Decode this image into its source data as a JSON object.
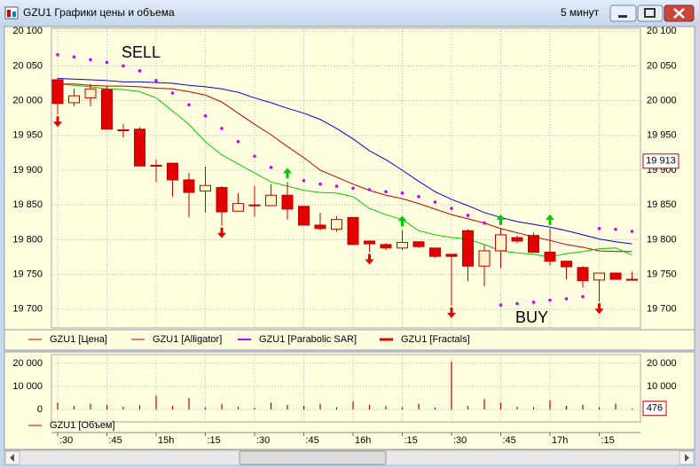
{
  "window": {
    "title": "GZU1 Графики цены и объема",
    "timeframe": "5 минут"
  },
  "chart_data": [
    {
      "type": "candlestick",
      "annotations": [
        {
          "text": "SELL",
          "color": "#e00000"
        },
        {
          "text": "BUY",
          "color": "#3fcc1f"
        }
      ],
      "price": {
        "name": "GZU1 [Цена]",
        "color": "#c00000",
        "up_fill": "#fff3c8",
        "down_fill": "#e00000",
        "open": [
          20030,
          19997,
          20004,
          20016,
          19958,
          19959,
          19907,
          19910,
          19886,
          19870,
          19875,
          19841,
          19849,
          19849,
          19864,
          19848,
          19821,
          19815,
          19832,
          19798,
          19793,
          19788,
          19797,
          19788,
          19779,
          19813,
          19762,
          19784,
          19803,
          19806,
          19782,
          19769,
          19760,
          19742,
          19752,
          19743
        ],
        "high": [
          20033,
          20017,
          20024,
          20021,
          19966,
          19962,
          19915,
          19910,
          19896,
          19905,
          19877,
          19867,
          19877,
          19880,
          19883,
          19848,
          19839,
          19834,
          19832,
          19798,
          19795,
          19814,
          19797,
          19788,
          19779,
          19815,
          19792,
          19816,
          19806,
          19810,
          19816,
          19769,
          19762,
          19752,
          19752,
          19754
        ],
        "low": [
          19980,
          19992,
          19992,
          19959,
          19947,
          19906,
          19883,
          19862,
          19832,
          19839,
          19820,
          19841,
          19833,
          19849,
          19829,
          19821,
          19813,
          19811,
          19793,
          19782,
          19785,
          19785,
          19788,
          19774,
          19705,
          19740,
          19733,
          19759,
          19795,
          19782,
          19763,
          19743,
          19731,
          19711,
          19743,
          19743
        ],
        "close": [
          19996,
          20007,
          20017,
          19959,
          19957,
          19906,
          19906,
          19886,
          19868,
          19878,
          19840,
          19852,
          19850,
          19864,
          19844,
          19821,
          19816,
          19829,
          19793,
          19794,
          19788,
          19796,
          19790,
          19776,
          19776,
          19762,
          19784,
          19807,
          19798,
          19782,
          19769,
          19761,
          19741,
          19752,
          19743,
          19743
        ]
      },
      "alligator": {
        "name": "GZU1 [Alligator]",
        "color": "#b00000",
        "lines": [
          {
            "color": "#0000dd",
            "values": [
              20032,
              20031,
              20030,
              20029,
              20027,
              20027,
              20026,
              20025,
              20022,
              20020,
              20017,
              20012,
              20004,
              19997,
              19989,
              19982,
              19973,
              19960,
              19945,
              19928,
              19915,
              19900,
              19884,
              19869,
              19858,
              19849,
              19839,
              19832,
              19826,
              19822,
              19818,
              19813,
              19807,
              19801,
              19797,
              19794
            ]
          },
          {
            "color": "#c00000",
            "values": [
              20024,
              20024,
              20022,
              20021,
              20021,
              20020,
              20018,
              20017,
              20013,
              20008,
              19998,
              19982,
              19966,
              19951,
              19934,
              19918,
              19900,
              19890,
              19880,
              19871,
              19864,
              19859,
              19852,
              19844,
              19836,
              19830,
              19824,
              19816,
              19810,
              19804,
              19799,
              19793,
              19789,
              19784,
              19783,
              19783
            ]
          },
          {
            "color": "#00cc00",
            "values": [
              20024,
              20022,
              20020,
              20017,
              20016,
              20013,
              20004,
              19985,
              19966,
              19941,
              19922,
              19909,
              19896,
              19883,
              19877,
              19871,
              19868,
              19867,
              19862,
              19845,
              19836,
              19829,
              19813,
              19807,
              19803,
              19801,
              19793,
              19784,
              19781,
              19779,
              19775,
              19780,
              19783,
              19787,
              19788,
              19778
            ]
          }
        ]
      },
      "sar": {
        "name": "GZU1 [Parabolic SAR]",
        "color": "#cc00ff",
        "values": [
          20066,
          20063,
          20059,
          20055,
          20050,
          20043,
          20029,
          20011,
          19994,
          19978,
          19960,
          19941,
          19920,
          19904,
          19894,
          19885,
          19880,
          19877,
          19874,
          19872,
          19869,
          19867,
          19862,
          19854,
          19845,
          19835,
          19824,
          19706,
          19708,
          19710,
          19713,
          19715,
          19718,
          19816,
          19815,
          19812
        ]
      },
      "fractals": {
        "name": "GZU1 [Fractals]",
        "color": "#e00000",
        "up_color": "#00cc00",
        "up": [
          null,
          null,
          null,
          null,
          null,
          null,
          null,
          null,
          null,
          null,
          null,
          null,
          null,
          null,
          19883,
          null,
          null,
          null,
          null,
          null,
          null,
          19814,
          null,
          null,
          null,
          null,
          null,
          19816,
          null,
          null,
          19816,
          null,
          null,
          null,
          null,
          null
        ],
        "down": [
          19980,
          null,
          null,
          null,
          null,
          null,
          null,
          null,
          null,
          null,
          19820,
          null,
          null,
          null,
          null,
          null,
          null,
          null,
          null,
          19782,
          null,
          null,
          null,
          null,
          19705,
          null,
          null,
          null,
          null,
          null,
          null,
          null,
          null,
          19711,
          null,
          null
        ]
      },
      "marker": {
        "value": 19913,
        "label": "19 913"
      },
      "ylim": [
        19673,
        20104
      ],
      "yticks": [
        {
          "value": 19700,
          "label": "19 700"
        },
        {
          "value": 19750,
          "label": "19 750"
        },
        {
          "value": 19800,
          "label": "19 800"
        },
        {
          "value": 19850,
          "label": "19 850"
        },
        {
          "value": 19900,
          "label": "19 900"
        },
        {
          "value": 19950,
          "label": "19 950"
        },
        {
          "value": 20000,
          "label": "20 000"
        },
        {
          "value": 20050,
          "label": "20 050"
        },
        {
          "value": 20100,
          "label": "20 100"
        }
      ],
      "grid": true
    },
    {
      "type": "bar",
      "categories": [
        ":30",
        null,
        null,
        ":45",
        null,
        null,
        "15h",
        null,
        null,
        ":15",
        null,
        null,
        ":30",
        null,
        null,
        ":45",
        null,
        null,
        "16h",
        null,
        null,
        ":15",
        null,
        null,
        ":30",
        null,
        null,
        ":45",
        null,
        null,
        "17h",
        null,
        null,
        ":15",
        null,
        null
      ],
      "series": [
        {
          "name": "GZU1 [Объем]",
          "color": "#c00000",
          "values": [
            3000,
            1500,
            2500,
            2000,
            1200,
            1800,
            6000,
            1500,
            5000,
            1000,
            2500,
            1200,
            800,
            3000,
            2000,
            1500,
            2500,
            1000,
            3500,
            2000,
            1500,
            1000,
            2500,
            800,
            20800,
            1500,
            4500,
            3000,
            1200,
            1000,
            4000,
            1500,
            2000,
            1000,
            2500,
            476
          ]
        }
      ],
      "ylim": [
        -5400,
        23800
      ],
      "yticks": [
        0,
        {
          "value": 10000,
          "label": "10 000"
        },
        {
          "value": 20000,
          "label": "20 000"
        }
      ],
      "grid": true
    }
  ]
}
